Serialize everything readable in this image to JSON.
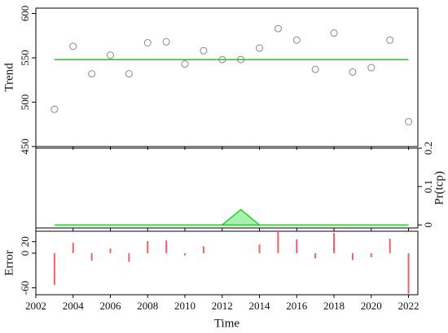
{
  "chart_data": [
    {
      "type": "scatter",
      "ylabel": "Trend",
      "x": [
        2003,
        2004,
        2005,
        2006,
        2007,
        2008,
        2009,
        2010,
        2011,
        2012,
        2013,
        2014,
        2015,
        2016,
        2017,
        2018,
        2019,
        2020,
        2021,
        2022
      ],
      "series": [
        {
          "type": "scatter",
          "color": "#888888",
          "values": [
            492,
            563,
            532,
            553,
            532,
            567,
            568,
            543,
            558,
            548,
            548,
            561,
            583,
            570,
            537,
            578,
            534,
            539,
            570,
            478
          ]
        },
        {
          "type": "line",
          "color": "#00dd00",
          "values": [
            548,
            548,
            548,
            548,
            548,
            548,
            548,
            548,
            548,
            548,
            548,
            548,
            548,
            548,
            548,
            548,
            548,
            548,
            548,
            548
          ]
        }
      ],
      "xlim": [
        2002,
        2022.5
      ],
      "ylim": [
        450,
        606
      ],
      "yticks": [
        450,
        500,
        550,
        600
      ]
    },
    {
      "type": "area",
      "ylabel": "Pr(tcp)",
      "axis_side": "right",
      "x": [
        2003,
        2004,
        2005,
        2006,
        2007,
        2008,
        2009,
        2010,
        2011,
        2012,
        2013,
        2014,
        2015,
        2016,
        2017,
        2018,
        2019,
        2020,
        2021,
        2022
      ],
      "series": [
        {
          "type": "area",
          "color": "#00cc00",
          "values": [
            0,
            0,
            0,
            0,
            0,
            0,
            0,
            0,
            0,
            0,
            0.04,
            0,
            0,
            0,
            0,
            0,
            0,
            0,
            0,
            0
          ]
        }
      ],
      "xlim": [
        2002,
        2022.5
      ],
      "ylim": [
        -0.008,
        0.2
      ],
      "yticks": [
        0,
        0.1,
        0.2
      ]
    },
    {
      "type": "bar",
      "ylabel": "Error",
      "xlabel": "Time",
      "x": [
        2003,
        2004,
        2005,
        2006,
        2007,
        2008,
        2009,
        2010,
        2011,
        2012,
        2013,
        2014,
        2015,
        2016,
        2017,
        2018,
        2019,
        2020,
        2021,
        2022
      ],
      "series": [
        {
          "type": "bar",
          "color": "#f06060",
          "values": [
            -55,
            18,
            -13,
            8,
            -15,
            21,
            22,
            -4,
            12,
            0,
            0,
            15,
            38,
            24,
            -9,
            35,
            -12,
            -7,
            25,
            -70
          ]
        }
      ],
      "xlim": [
        2002,
        2022.5
      ],
      "ylim": [
        -72,
        38
      ],
      "yticks": [
        -60,
        0,
        20
      ],
      "xticks": [
        2002,
        2004,
        2006,
        2008,
        2010,
        2012,
        2014,
        2016,
        2018,
        2020,
        2022
      ]
    }
  ]
}
